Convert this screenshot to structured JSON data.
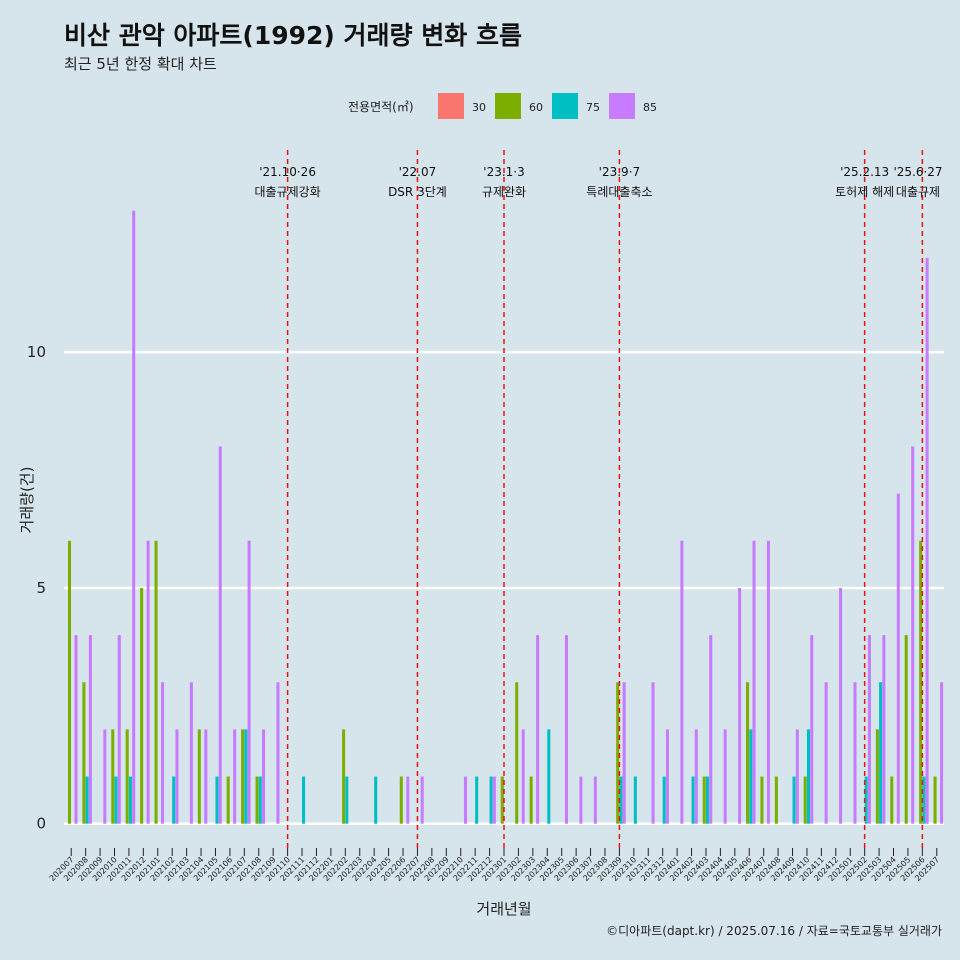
{
  "title": "비산 관악 아파트(1992) 거래량 변화 흐름",
  "subtitle": "최근 5년 한정 확대 차트",
  "caption": "©디아파트(dapt.kr) / 2025.07.16 / 자료=국토교통부 실거래가",
  "background_color": "#d6e4eb",
  "chart_data": {
    "type": "bar",
    "xlabel": "거래년월",
    "ylabel": "거래량(건)",
    "ylim": [
      -0.6,
      14.5
    ],
    "yticks": [
      0,
      5,
      10
    ],
    "legend": {
      "title": "전용면적(㎡)",
      "position": "top"
    },
    "categories": [
      "202007",
      "202008",
      "202009",
      "202010",
      "202011",
      "202012",
      "202101",
      "202102",
      "202103",
      "202104",
      "202105",
      "202106",
      "202107",
      "202108",
      "202109",
      "202110",
      "202111",
      "202112",
      "202201",
      "202202",
      "202203",
      "202204",
      "202205",
      "202206",
      "202207",
      "202208",
      "202209",
      "202210",
      "202211",
      "202212",
      "202301",
      "202302",
      "202303",
      "202304",
      "202305",
      "202306",
      "202307",
      "202308",
      "202309",
      "202310",
      "202311",
      "202312",
      "202401",
      "202402",
      "202403",
      "202404",
      "202405",
      "202406",
      "202407",
      "202408",
      "202409",
      "202410",
      "202411",
      "202412",
      "202501",
      "202502",
      "202503",
      "202504",
      "202505",
      "202506",
      "202507"
    ],
    "series": [
      {
        "name": "30",
        "color": "#f8766d",
        "values": [
          0,
          0,
          0,
          0,
          0,
          0,
          0,
          0,
          0,
          0,
          0,
          0,
          0,
          0,
          0,
          0,
          0,
          0,
          0,
          0,
          0,
          0,
          0,
          0,
          0,
          0,
          0,
          0,
          0,
          0,
          0,
          0,
          0,
          0,
          0,
          0,
          0,
          0,
          0,
          0,
          0,
          0,
          0,
          0,
          0,
          0,
          0,
          0,
          0,
          0,
          0,
          0,
          0,
          0,
          0,
          0,
          0,
          0,
          0,
          0,
          0
        ]
      },
      {
        "name": "60",
        "color": "#7cae00",
        "values": [
          6,
          3,
          0,
          2,
          2,
          5,
          6,
          0,
          0,
          2,
          0,
          1,
          2,
          1,
          0,
          0,
          0,
          0,
          0,
          2,
          0,
          0,
          0,
          1,
          0,
          0,
          0,
          0,
          0,
          0,
          1,
          3,
          1,
          0,
          0,
          0,
          0,
          0,
          3,
          0,
          0,
          0,
          0,
          0,
          1,
          0,
          0,
          3,
          1,
          1,
          0,
          1,
          0,
          0,
          0,
          0,
          2,
          1,
          4,
          6,
          1
        ]
      },
      {
        "name": "75",
        "color": "#00bfc4",
        "values": [
          0,
          1,
          0,
          1,
          1,
          0,
          0,
          1,
          0,
          0,
          1,
          0,
          2,
          1,
          0,
          0,
          1,
          0,
          0,
          1,
          0,
          1,
          0,
          0,
          0,
          0,
          0,
          0,
          1,
          1,
          0,
          0,
          0,
          2,
          0,
          0,
          0,
          0,
          1,
          1,
          0,
          1,
          0,
          1,
          1,
          0,
          0,
          2,
          0,
          0,
          1,
          2,
          0,
          0,
          0,
          1,
          3,
          0,
          0,
          1,
          0
        ]
      },
      {
        "name": "85",
        "color": "#c77cff",
        "values": [
          4,
          4,
          2,
          4,
          13,
          6,
          3,
          2,
          3,
          2,
          8,
          2,
          6,
          2,
          3,
          0,
          0,
          0,
          0,
          0,
          0,
          0,
          0,
          1,
          1,
          0,
          0,
          1,
          0,
          1,
          0,
          2,
          4,
          0,
          4,
          1,
          1,
          0,
          3,
          0,
          3,
          2,
          6,
          2,
          4,
          2,
          5,
          6,
          6,
          0,
          2,
          4,
          3,
          5,
          3,
          4,
          4,
          7,
          8,
          12,
          3
        ]
      }
    ],
    "events": [
      {
        "date": "'21.10·26",
        "label": "대출규제강화",
        "at": "202110"
      },
      {
        "date": "'22.07",
        "label": "DSR 3단계",
        "at": "202207"
      },
      {
        "date": "'23.1·3",
        "label": "규제완화",
        "at": "202301"
      },
      {
        "date": "'23.9·7",
        "label": "특례대출축소",
        "at": "202309"
      },
      {
        "date": "'25.2.13",
        "label": "토허제 해제",
        "at": "202502"
      },
      {
        "date": "'25.6·27",
        "label": "대출규제",
        "at": "202506"
      }
    ],
    "event_line_color": "#ee1111",
    "grid": true
  }
}
